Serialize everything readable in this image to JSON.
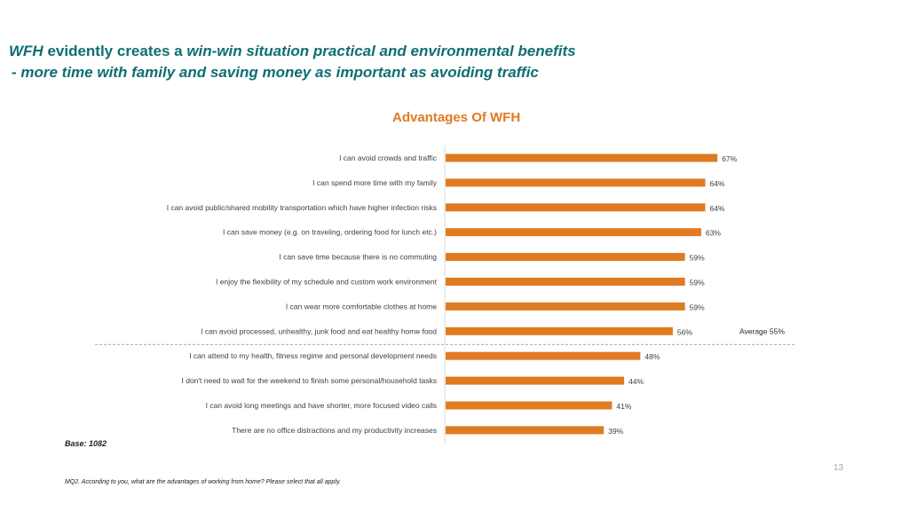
{
  "header": {
    "title_part1": "WFH",
    "title_part2": " evidently creates a ",
    "title_part3": "win-win situation practical and environmental benefits",
    "title_line2": "- more time with family and saving money as important as avoiding traffic"
  },
  "chart_data": {
    "type": "bar",
    "orientation": "horizontal",
    "title": "Advantages Of WFH",
    "categories": [
      "I can avoid crowds and traffic",
      "I can spend more time with my family",
      "I can avoid public/shared mobility transportation which have higher infection risks",
      "I can save money (e.g. on traveling, ordering food for lunch etc.)",
      "I can save time because there is no commuting",
      "I enjoy the flexibility of my schedule and custom work environment",
      "I can wear more comfortable clothes at home",
      "I can avoid processed, unhealthy, junk food and eat healthy home food",
      "I can attend to my health, fitness regime and personal development needs",
      "I don't need to wait for the weekend to finish some personal/household tasks",
      "I can avoid long meetings and have shorter, more focused video calls",
      "There are no office distractions and my productivity increases"
    ],
    "values": [
      67,
      64,
      64,
      63,
      59,
      59,
      59,
      56,
      48,
      44,
      41,
      39
    ],
    "value_suffix": "%",
    "xlim": [
      0,
      100
    ],
    "bar_color": "#e07b22",
    "average": {
      "value": 55,
      "label": "Average 55%"
    }
  },
  "footer": {
    "base": "Base: 1082",
    "page_number": "13",
    "footnote": "MQ2. According to you, what are the advantages of working from home? Please select that all apply."
  }
}
